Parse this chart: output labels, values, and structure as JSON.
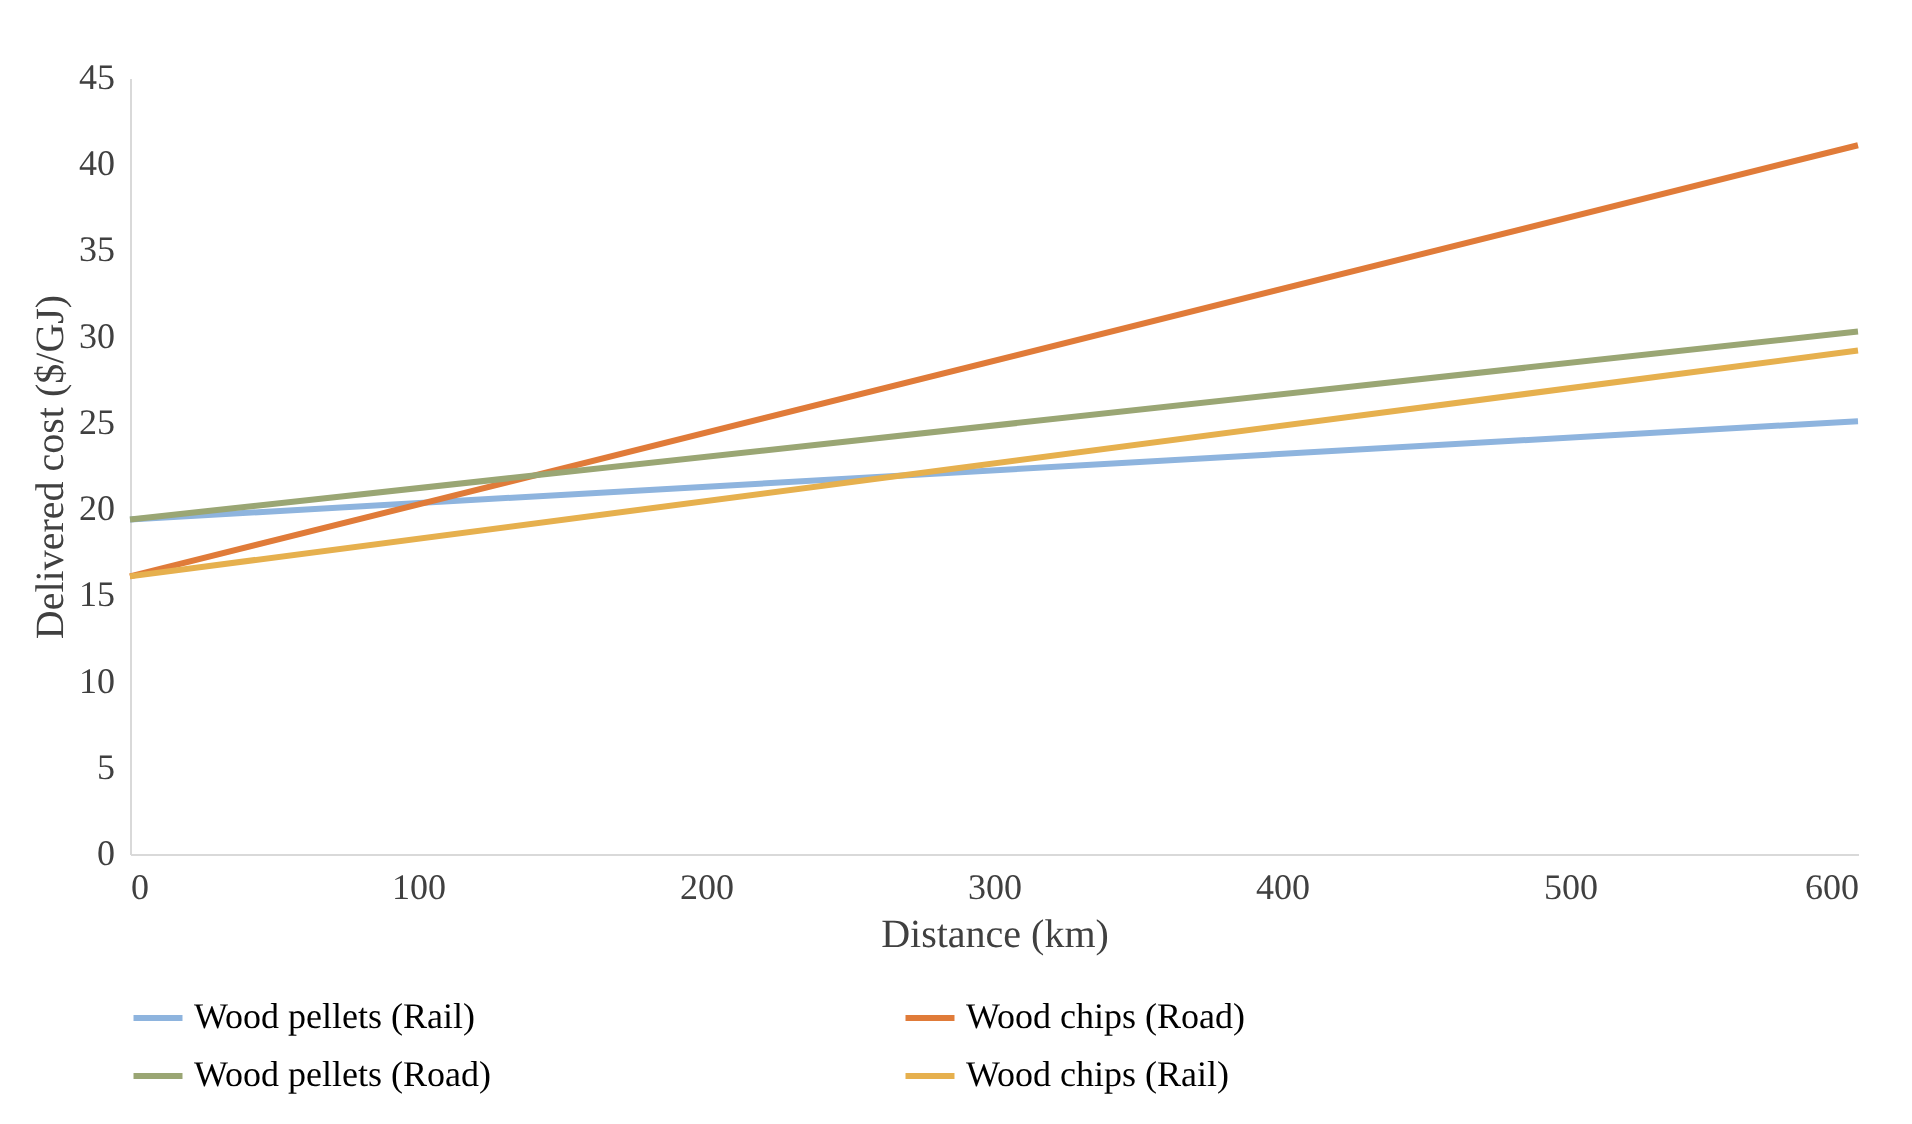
{
  "chart_data": {
    "type": "line",
    "xlabel": "Distance (km)",
    "ylabel": "Delivered cost ($/GJ)",
    "x": [
      0,
      600
    ],
    "xlim": [
      0,
      600
    ],
    "xticks": [
      0,
      100,
      200,
      300,
      400,
      500,
      600
    ],
    "ylim": [
      0,
      45
    ],
    "yticks": [
      0,
      5,
      10,
      15,
      20,
      25,
      30,
      35,
      40,
      45
    ],
    "grid": false,
    "legend": "bottom",
    "marker": "none",
    "line_style": "solid",
    "series": [
      {
        "name": "Wood pellets (Rail)",
        "color": "#8eb4de",
        "values": [
          19.4,
          25.1
        ]
      },
      {
        "name": "Wood chips (Road)",
        "color": "#e07b39",
        "values": [
          16.1,
          41.1
        ]
      },
      {
        "name": "Wood pellets (Road)",
        "color": "#9aa674",
        "values": [
          19.4,
          30.3
        ]
      },
      {
        "name": "Wood chips (Rail)",
        "color": "#e6b04e",
        "values": [
          16.1,
          29.2
        ]
      }
    ]
  }
}
